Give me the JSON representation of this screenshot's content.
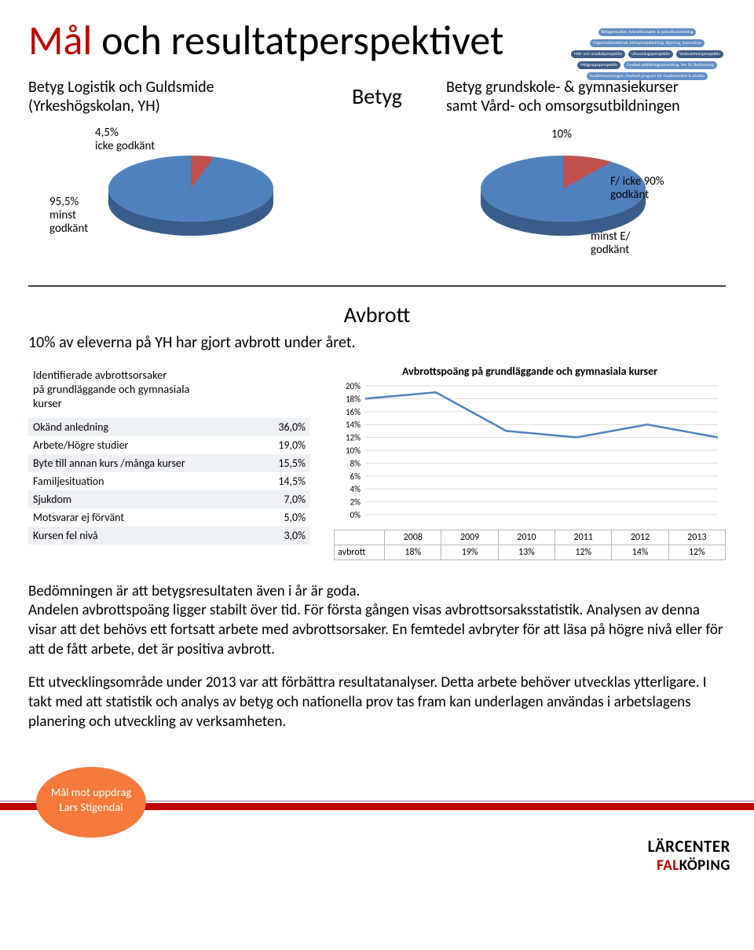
{
  "title_prefix": "Mål",
  "title_rest": " och resultatperspektivet",
  "thumb_chips": [
    {
      "label": "Betygsresultat, Avbrottsorsaker & avbrottsutveckling",
      "bg": "#4f81bd"
    },
    {
      "label": "Organisationsklimat, Intraprenadledning, Styrning, Samverkan",
      "bg": "#4f81bd"
    },
    {
      "label": "Mål- och resultatperspektiv",
      "bg": "#254a78"
    },
    {
      "label": "Utvecklingsperspektiv",
      "bg": "#254a78"
    },
    {
      "label": "Verksamhetsperspektiv",
      "bg": "#254a78"
    },
    {
      "label": "Målgruppsperspektiv",
      "bg": "#254a78"
    },
    {
      "label": "Flexibel utbildningsutveckling, Yes 10, Bedömning",
      "bg": "#4f81bd"
    },
    {
      "label": "Kvalitetssatsningen, Flexibelt program för studiehandlet & utsatta",
      "bg": "#4f81bd"
    }
  ],
  "betyg_center": "Betyg",
  "betyg_left_sub_l1": "Betyg Logistik och Guldsmide",
  "betyg_left_sub_l2": "(Yrkeshögskolan, YH)",
  "betyg_right_sub_l1": "Betyg grundskole- & gymnasiekurser",
  "betyg_right_sub_l2": "samt Vård- och omsorgsutbildningen",
  "pie1": {
    "p1_label_l1": "4,5%",
    "p1_label_l2": "icke godkänt",
    "p2_label_l1": "95,5%",
    "p2_label_l2": "minst",
    "p2_label_l3": "godkänt",
    "main_color": "#4f81bd",
    "slice_color": "#c0504d",
    "side_color": "#385d8a",
    "deg": 16.2
  },
  "pie2": {
    "p1_label": "10%",
    "p2_label_l1": "F/ icke",
    "p2_label_l2": "godkänt",
    "p2_pct": "90%",
    "bottom_l1": "minst E/",
    "bottom_l2": "godkänt",
    "main_color": "#4f81bd",
    "slice_color": "#c0504d",
    "side_color": "#385d8a",
    "deg": 36
  },
  "avbrott_heading": "Avbrott",
  "avbrott_sub": "10% av eleverna på YH har gjort avbrott under året.",
  "causes_caption_l1": "Identifierade avbrottsorsaker",
  "causes_caption_l2": "på grundläggande och gymnasiala",
  "causes_caption_l3": "kurser",
  "causes": [
    {
      "label": "Okänd anledning",
      "pct": "36,0%"
    },
    {
      "label": "Arbete/Högre studier",
      "pct": "19,0%"
    },
    {
      "label": "Byte till annan kurs /många kurser",
      "pct": "15,5%"
    },
    {
      "label": "Familjesituation",
      "pct": "14,5%"
    },
    {
      "label": "Sjukdom",
      "pct": "7,0%"
    },
    {
      "label": "Motsvarar ej förvänt",
      "pct": "5,0%"
    },
    {
      "label": "Kursen fel nivå",
      "pct": "3,0%"
    }
  ],
  "linechart": {
    "title": "Avbrottspoäng på grundläggande och gymnasiala kurser",
    "years": [
      "2008",
      "2009",
      "2010",
      "2011",
      "2012",
      "2013"
    ],
    "row_label": "avbrott",
    "values_pct": [
      18,
      19,
      13,
      12,
      14,
      12
    ],
    "values_display": [
      "18%",
      "19%",
      "13%",
      "12%",
      "14%",
      "12%"
    ],
    "ylim": [
      0,
      20
    ],
    "ytick_step": 2,
    "line_color": "#4f81bd",
    "grid_color": "#d9d9d9",
    "axis_color": "#808080",
    "bg": "#ffffff",
    "label_fontsize": 11
  },
  "paragraph1": "Bedömningen är att betygsresultaten även i år är goda.\nAndelen avbrottspoäng ligger stabilt över tid. För första gången visas avbrottsorsaksstatistik. Analysen av denna visar att det behövs ett fortsatt arbete med avbrottsorsaker. En femtedel avbryter för att läsa på högre nivå eller för att de fått arbete, det är positiva avbrott.",
  "paragraph2": "Ett utvecklingsområde under 2013 var att förbättra resultatanalyser. Detta arbete behöver utvecklas ytterligare. I takt med att statistik och analys av betyg och nationella prov tas fram kan underlagen användas i arbetslagens planering och utveckling av verksamheten.",
  "badge_l1": "Mål mot uppdrag",
  "badge_l2": "Lars Stigendal",
  "logo_top": "LÄRCENTER",
  "logo_bottom_red": "FAL",
  "logo_bottom_black": "KÖPING"
}
